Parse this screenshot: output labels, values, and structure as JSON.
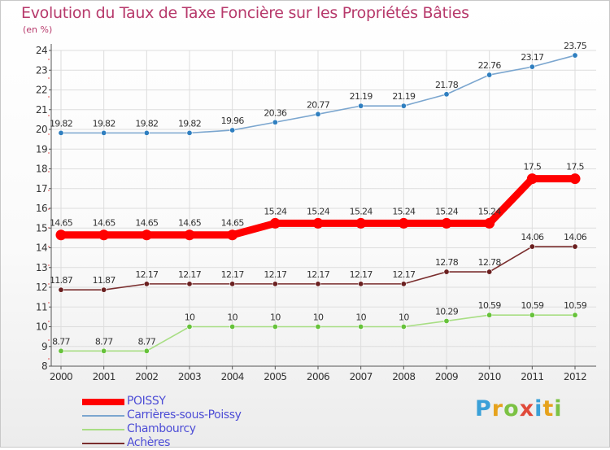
{
  "title": "Evolution du Taux de Taxe Foncière sur les Propriétés Bâties",
  "unit_label": "(en %)",
  "logo": {
    "letters": [
      "P",
      "r",
      "o",
      "x",
      "i",
      "t",
      "i"
    ],
    "colors": [
      "#3aa0d8",
      "#e6a21c",
      "#7cc244",
      "#e04a3a",
      "#3aa0d8",
      "#e6a21c",
      "#7cc244"
    ]
  },
  "chart_data": {
    "type": "line",
    "title": "Evolution du Taux de Taxe Foncière sur les Propriétés Bâties",
    "ylabel": "(en %)",
    "xlabel": "",
    "x": [
      2000,
      2001,
      2002,
      2003,
      2004,
      2005,
      2006,
      2007,
      2008,
      2009,
      2010,
      2011,
      2012
    ],
    "ylim": [
      8,
      24
    ],
    "yticks": [
      8,
      9,
      10,
      11,
      12,
      13,
      14,
      15,
      16,
      17,
      18,
      19,
      20,
      21,
      22,
      23,
      24
    ],
    "grid": true,
    "legend_position": "bottom-left",
    "series": [
      {
        "name": "POISSY",
        "color": "#ff0000",
        "emphasis": true,
        "values": [
          14.65,
          14.65,
          14.65,
          14.65,
          14.65,
          15.24,
          15.24,
          15.24,
          15.24,
          15.24,
          15.24,
          17.5,
          17.5
        ],
        "labels": [
          "14.65",
          "14.65",
          "14.65",
          "14.65",
          "14.65",
          "15.24",
          "15.24",
          "15.24",
          "15.24",
          "15.24",
          "15.24",
          "17.5",
          "17.5"
        ]
      },
      {
        "name": "Carrières-sous-Poissy",
        "color": "#7ba6cf",
        "marker_color": "#2f7fc0",
        "values": [
          19.82,
          19.82,
          19.82,
          19.82,
          19.96,
          20.36,
          20.77,
          21.19,
          21.19,
          21.78,
          22.76,
          23.17,
          23.75
        ],
        "labels": [
          "19.82",
          "19.82",
          "19.82",
          "19.82",
          "19.96",
          "20.36",
          "20.77",
          "21.19",
          "21.19",
          "21.78",
          "22.76",
          "23.17",
          "23.75"
        ]
      },
      {
        "name": "Chambourcy",
        "color": "#a8de84",
        "marker_color": "#66c23a",
        "values": [
          8.77,
          8.77,
          8.77,
          10,
          10,
          10,
          10,
          10,
          10,
          10.29,
          10.59,
          10.59,
          10.59
        ],
        "labels": [
          "8.77",
          "8.77",
          "8.77",
          "10",
          "10",
          "10",
          "10",
          "10",
          "10",
          "10.29",
          "10.59",
          "10.59",
          "10.59"
        ]
      },
      {
        "name": "Achères",
        "color": "#7a2e2e",
        "marker_color": "#6a1f1f",
        "values": [
          11.87,
          11.87,
          12.17,
          12.17,
          12.17,
          12.17,
          12.17,
          12.17,
          12.17,
          12.78,
          12.78,
          14.06,
          14.06
        ],
        "labels": [
          "11.87",
          "11.87",
          "12.17",
          "12.17",
          "12.17",
          "12.17",
          "12.17",
          "12.17",
          "12.17",
          "12.78",
          "12.78",
          "14.06",
          "14.06"
        ]
      }
    ]
  }
}
